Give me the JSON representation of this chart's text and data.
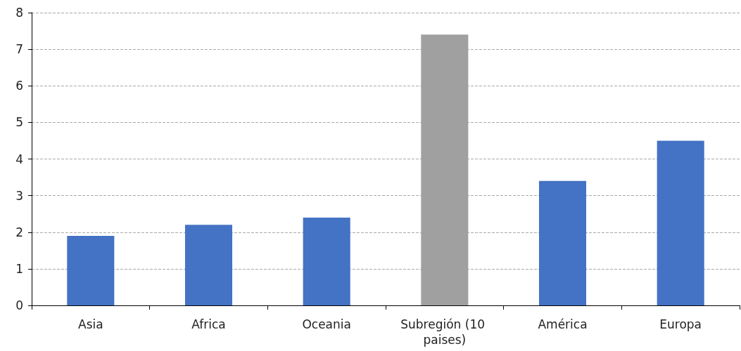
{
  "chart_data": {
    "type": "bar",
    "categories": [
      "Asia",
      "Africa",
      "Oceania",
      "Subregión (10 paises)",
      "América",
      "Europa"
    ],
    "values": [
      1.9,
      2.2,
      2.4,
      7.4,
      3.4,
      4.5
    ],
    "colors": [
      "#4472c4",
      "#4472c4",
      "#4472c4",
      "#a0a0a0",
      "#4472c4",
      "#4472c4"
    ],
    "ylim": [
      0,
      8
    ],
    "yticks": [
      0,
      1,
      2,
      3,
      4,
      5,
      6,
      7,
      8
    ],
    "grid": "y"
  }
}
